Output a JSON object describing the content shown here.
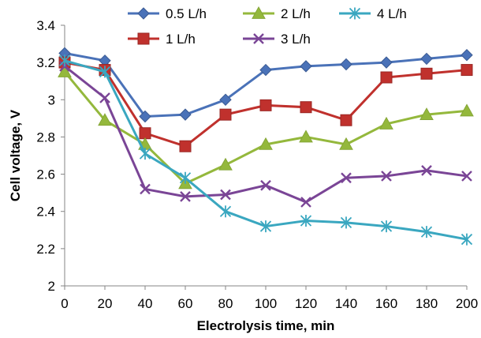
{
  "chart_data": {
    "type": "line",
    "title": "",
    "xlabel": "Electrolysis  time, min",
    "ylabel": "Cell voltage,  V",
    "x": [
      0,
      20,
      40,
      60,
      80,
      100,
      120,
      140,
      160,
      180,
      200
    ],
    "xlim": [
      0,
      200
    ],
    "ylim": [
      2,
      3.4
    ],
    "x_ticks": [
      "0",
      "20",
      "40",
      "60",
      "80",
      "100",
      "120",
      "140",
      "160",
      "180",
      "200"
    ],
    "y_ticks": [
      "2",
      "2.2",
      "2.4",
      "2.6",
      "2.8",
      "3",
      "3.2",
      "3.4"
    ],
    "grid": false,
    "legend_position": "top",
    "series": [
      {
        "name": "0.5 L/h",
        "color": "#4a72b8",
        "marker": "diamond",
        "values": [
          3.25,
          3.21,
          2.91,
          2.92,
          3.0,
          3.16,
          3.18,
          3.19,
          3.2,
          3.22,
          3.24
        ]
      },
      {
        "name": "1 L/h",
        "color": "#c0312d",
        "marker": "square",
        "values": [
          3.2,
          3.16,
          2.82,
          2.75,
          2.92,
          2.97,
          2.96,
          2.89,
          3.12,
          3.14,
          3.16
        ]
      },
      {
        "name": "2 L/h",
        "color": "#94b83c",
        "marker": "triangle",
        "values": [
          3.15,
          2.89,
          2.76,
          2.55,
          2.65,
          2.76,
          2.8,
          2.76,
          2.87,
          2.92,
          2.94
        ]
      },
      {
        "name": "3 L/h",
        "color": "#7a4596",
        "marker": "x",
        "values": [
          3.18,
          3.01,
          2.52,
          2.48,
          2.49,
          2.54,
          2.45,
          2.58,
          2.59,
          2.62,
          2.59
        ]
      },
      {
        "name": "4 L/h",
        "color": "#3aa7c0",
        "marker": "asterisk",
        "values": [
          3.21,
          3.15,
          2.71,
          2.58,
          2.4,
          2.32,
          2.35,
          2.34,
          2.32,
          2.29,
          2.25
        ]
      }
    ]
  }
}
